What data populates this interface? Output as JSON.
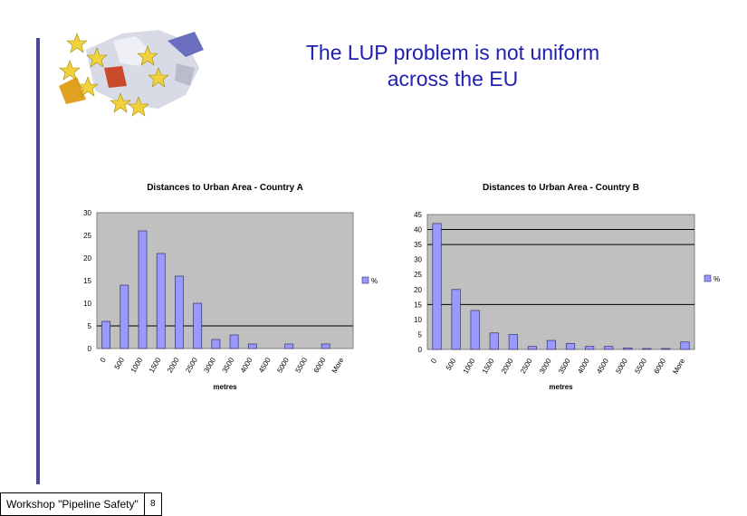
{
  "slide": {
    "title_line1": "The LUP problem is not uniform",
    "title_line2": "across the EU"
  },
  "footer": {
    "label": "Workshop \"Pipeline Safety\"",
    "page": "8"
  },
  "colors": {
    "bar": "#9999ff",
    "plot_area": "#c0c0c0",
    "title": "#1f1fb0",
    "gridline": "#000000"
  },
  "chart_data": [
    {
      "type": "bar",
      "title": "Distances to Urban Area - Country A",
      "xlabel": "metres",
      "ylabel": "",
      "legend": "%",
      "legend_position": "right",
      "grid": true,
      "categories": [
        "0",
        "500",
        "1000",
        "1500",
        "2000",
        "2500",
        "3000",
        "3500",
        "4000",
        "4500",
        "5000",
        "5500",
        "6000",
        "More"
      ],
      "series": [
        {
          "name": "%",
          "values": [
            6,
            14,
            26,
            21,
            16,
            10,
            2,
            3,
            1,
            0,
            1,
            0,
            1,
            0
          ]
        }
      ],
      "ylim": [
        0,
        30
      ],
      "yticks": [
        0,
        5,
        10,
        15,
        20,
        25,
        30
      ],
      "gridlines_at": [
        5
      ]
    },
    {
      "type": "bar",
      "title": "Distances to Urban Area - Country B",
      "xlabel": "metres",
      "ylabel": "",
      "legend": "%",
      "legend_position": "right",
      "grid": true,
      "categories": [
        "0",
        "500",
        "1000",
        "1500",
        "2000",
        "2500",
        "3000",
        "3500",
        "4000",
        "4500",
        "5000",
        "5500",
        "6000",
        "More"
      ],
      "series": [
        {
          "name": "%",
          "values": [
            42,
            20,
            13,
            5.5,
            5,
            1,
            3,
            2,
            1,
            1,
            0.5,
            0.3,
            0.3,
            2.5
          ]
        }
      ],
      "ylim": [
        0,
        45
      ],
      "yticks": [
        0,
        5,
        10,
        15,
        20,
        25,
        30,
        35,
        40,
        45
      ],
      "gridlines_at": [
        15,
        35,
        40
      ]
    }
  ]
}
